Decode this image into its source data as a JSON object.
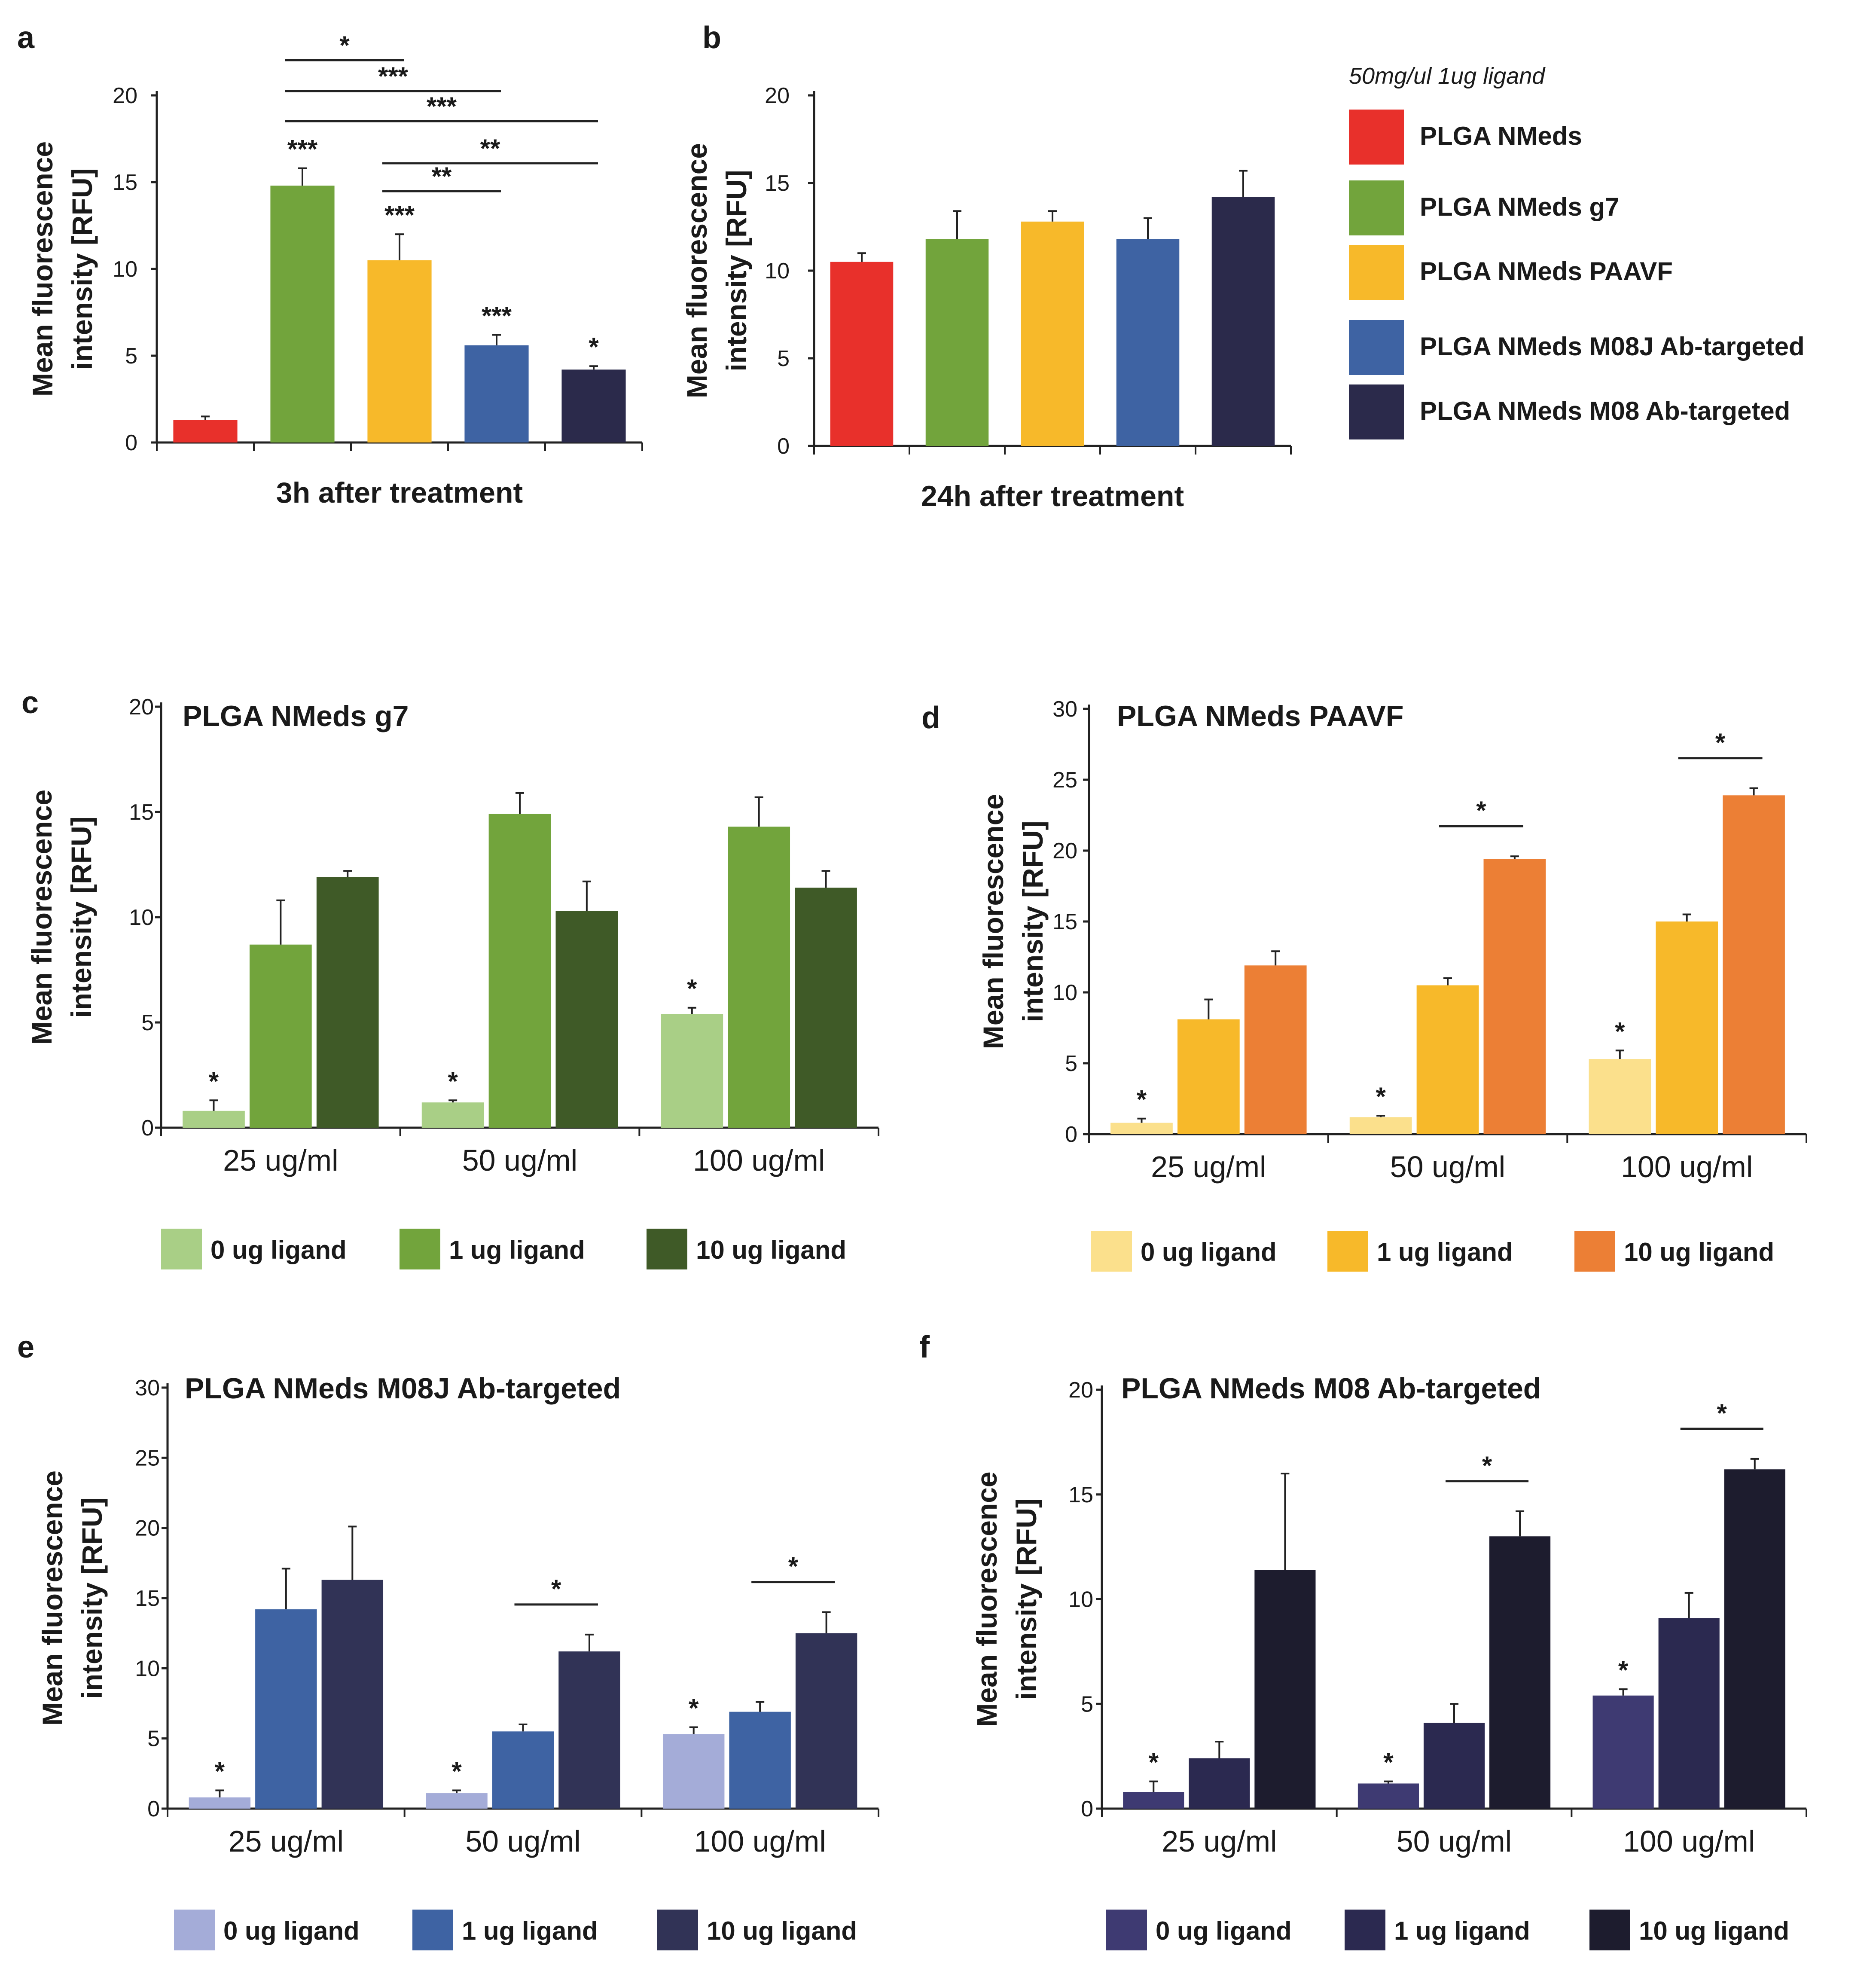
{
  "chart_data": [
    {
      "panel": "a",
      "type": "bar",
      "categories": [
        "PLGA NMeds",
        "PLGA NMeds g7",
        "PLGA NMeds PAAVF",
        "PLGA NMeds M08J Ab-targeted",
        "PLGA NMeds M08 Ab-targeted"
      ],
      "values": [
        1.3,
        14.8,
        10.5,
        5.6,
        4.2
      ],
      "errors": [
        0.2,
        1.0,
        1.5,
        0.6,
        0.2
      ],
      "colors": [
        "#e8302b",
        "#72a43c",
        "#f7b92a",
        "#3e63a3",
        "#2b2a4b"
      ],
      "bar_stars": [
        "",
        "***",
        "***",
        "***",
        "*"
      ],
      "brackets": [
        {
          "from": 1,
          "to": 2,
          "label": "*"
        },
        {
          "from": 1,
          "to": 3,
          "label": "***"
        },
        {
          "from": 1,
          "to": 4,
          "label": "***"
        },
        {
          "from": 2,
          "to": 4,
          "label": "**"
        },
        {
          "from": 2,
          "to": 3,
          "label": "**"
        }
      ],
      "xlabel": "3h after treatment",
      "ylabel": [
        "Mean fluorescence",
        "intensity  [RFU]"
      ],
      "ylim": [
        0,
        20
      ],
      "yticks": [
        0,
        5,
        10,
        15,
        20
      ]
    },
    {
      "panel": "b",
      "type": "bar",
      "categories": [
        "PLGA NMeds",
        "PLGA NMeds g7",
        "PLGA NMeds PAAVF",
        "PLGA NMeds M08J Ab-targeted",
        "PLGA NMeds M08 Ab-targeted"
      ],
      "values": [
        10.5,
        11.8,
        12.8,
        11.8,
        14.2
      ],
      "errors": [
        0.5,
        1.6,
        0.6,
        1.2,
        1.5
      ],
      "colors": [
        "#e8302b",
        "#72a43c",
        "#f7b92a",
        "#3e63a3",
        "#2b2a4b"
      ],
      "xlabel": "24h after treatment",
      "ylabel": [
        "Mean fluorescence",
        "intensity  [RFU]"
      ],
      "ylim": [
        0,
        20
      ],
      "yticks": [
        0,
        5,
        10,
        15,
        20
      ],
      "legend": {
        "note": "50mg/ul   1ug ligand",
        "entries": [
          "PLGA NMeds",
          "PLGA NMeds g7",
          "PLGA NMeds PAAVF",
          "PLGA NMeds M08J Ab-targeted",
          "PLGA NMeds M08 Ab-targeted"
        ]
      }
    },
    {
      "panel": "c",
      "type": "bar",
      "title": "PLGA NMeds g7",
      "categories": [
        "25 ug/ml",
        "50 ug/ml",
        "100 ug/ml"
      ],
      "series": [
        {
          "name": "0 ug ligand",
          "color": "#a9cf86",
          "values": [
            0.8,
            1.2,
            5.4
          ],
          "errors": [
            0.5,
            0.1,
            0.3
          ],
          "stars": [
            "*",
            "*",
            "*"
          ]
        },
        {
          "name": "1 ug ligand",
          "color": "#72a43c",
          "values": [
            8.7,
            14.9,
            14.3
          ],
          "errors": [
            2.1,
            1.0,
            1.4
          ]
        },
        {
          "name": "10 ug ligand",
          "color": "#3f5a27",
          "values": [
            11.9,
            10.3,
            11.4
          ],
          "errors": [
            0.3,
            1.4,
            0.8
          ]
        }
      ],
      "brackets": [],
      "ylabel": [
        "Mean fluorescence",
        "intensity  [RFU]"
      ],
      "ylim": [
        0,
        20
      ],
      "yticks": [
        0,
        5,
        10,
        15,
        20
      ]
    },
    {
      "panel": "d",
      "type": "bar",
      "title": "PLGA NMeds PAAVF",
      "categories": [
        "25 ug/ml",
        "50 ug/ml",
        "100 ug/ml"
      ],
      "series": [
        {
          "name": "0 ug ligand",
          "color": "#fbe08c",
          "values": [
            0.8,
            1.2,
            5.3
          ],
          "errors": [
            0.3,
            0.1,
            0.6
          ],
          "stars": [
            "*",
            "*",
            "*"
          ]
        },
        {
          "name": "1 ug ligand",
          "color": "#f7b92a",
          "values": [
            8.1,
            10.5,
            15.0
          ],
          "errors": [
            1.4,
            0.5,
            0.5
          ]
        },
        {
          "name": "10 ug ligand",
          "color": "#ec7f35",
          "values": [
            11.9,
            19.4,
            23.9
          ],
          "errors": [
            1.0,
            0.2,
            0.5
          ]
        }
      ],
      "brackets": [
        {
          "group": 1,
          "from": 1,
          "to": 2,
          "label": "*"
        },
        {
          "group": 2,
          "from": 1,
          "to": 2,
          "label": "*"
        }
      ],
      "ylabel": [
        "Mean fluorescence",
        "intensity  [RFU]"
      ],
      "ylim": [
        0,
        30
      ],
      "yticks": [
        0,
        5,
        10,
        15,
        20,
        25,
        30
      ]
    },
    {
      "panel": "e",
      "type": "bar",
      "title": "PLGA NMeds M08J Ab-targeted",
      "categories": [
        "25 ug/ml",
        "50 ug/ml",
        "100 ug/ml"
      ],
      "series": [
        {
          "name": "0 ug ligand",
          "color": "#a4acd8",
          "values": [
            0.8,
            1.1,
            5.3
          ],
          "errors": [
            0.5,
            0.2,
            0.5
          ],
          "stars": [
            "*",
            "*",
            "*"
          ]
        },
        {
          "name": "1 ug ligand",
          "color": "#3e63a3",
          "values": [
            14.2,
            5.5,
            6.9
          ],
          "errors": [
            2.9,
            0.5,
            0.7
          ]
        },
        {
          "name": "10 ug ligand",
          "color": "#313356",
          "values": [
            16.3,
            11.2,
            12.5
          ],
          "errors": [
            3.8,
            1.2,
            1.5
          ]
        }
      ],
      "brackets": [
        {
          "group": 1,
          "from": 1,
          "to": 2,
          "label": "*"
        },
        {
          "group": 2,
          "from": 1,
          "to": 2,
          "label": "*"
        }
      ],
      "ylabel": [
        "Mean fluorescence",
        "intensity  [RFU]"
      ],
      "ylim": [
        0,
        30
      ],
      "yticks": [
        0,
        5,
        10,
        15,
        20,
        25,
        30
      ]
    },
    {
      "panel": "f",
      "type": "bar",
      "title": "PLGA NMeds M08 Ab-targeted",
      "categories": [
        "25 ug/ml",
        "50 ug/ml",
        "100 ug/ml"
      ],
      "series": [
        {
          "name": "0 ug ligand",
          "color": "#3e3a72",
          "values": [
            0.8,
            1.2,
            5.4
          ],
          "errors": [
            0.5,
            0.1,
            0.3
          ],
          "stars": [
            "*",
            "*",
            "*"
          ]
        },
        {
          "name": "1 ug ligand",
          "color": "#2b2950",
          "values": [
            2.4,
            4.1,
            9.1
          ],
          "errors": [
            0.8,
            0.9,
            1.2
          ]
        },
        {
          "name": "10 ug ligand",
          "color": "#1d1c2e",
          "values": [
            11.4,
            13.0,
            16.2
          ],
          "errors": [
            4.6,
            1.2,
            0.5
          ]
        }
      ],
      "brackets": [
        {
          "group": 1,
          "from": 1,
          "to": 2,
          "label": "*"
        },
        {
          "group": 2,
          "from": 1,
          "to": 2,
          "label": "*"
        }
      ],
      "ylabel": [
        "Mean fluorescence",
        "intensity  [RFU]"
      ],
      "ylim": [
        0,
        20
      ],
      "yticks": [
        0,
        5,
        10,
        15,
        20
      ]
    }
  ]
}
